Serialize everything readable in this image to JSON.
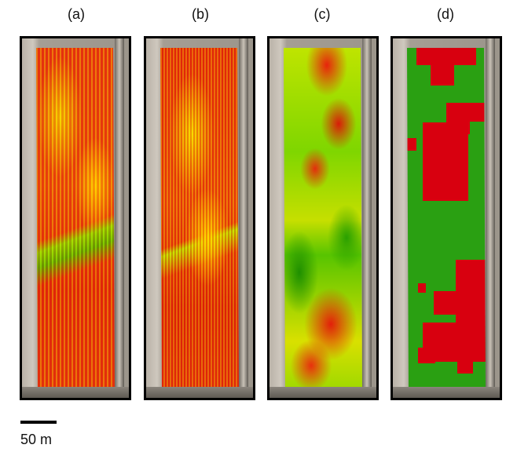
{
  "panels": [
    {
      "label": "(a)"
    },
    {
      "label": "(b)"
    },
    {
      "label": "(c)"
    },
    {
      "label": "(d)"
    }
  ],
  "scale": {
    "label": "50 m"
  },
  "colors": {
    "red": "#d8000f",
    "yellow": "#f2d400",
    "green": "#2aa012",
    "border": "#000000"
  }
}
